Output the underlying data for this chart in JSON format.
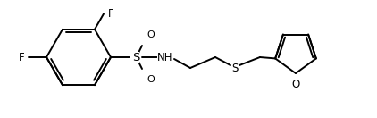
{
  "bg_color": "#ffffff",
  "line_color": "#000000",
  "lw": 1.4,
  "fs": 8.5,
  "fig_width": 4.22,
  "fig_height": 1.32,
  "dpi": 100,
  "xlim": [
    0,
    422
  ],
  "ylim": [
    0,
    132
  ]
}
